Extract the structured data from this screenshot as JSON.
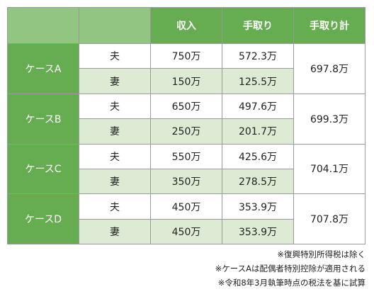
{
  "header": {
    "income": "収入",
    "take_home": "手取り",
    "take_home_total": "手取り計"
  },
  "cases": [
    {
      "label": "ケースA",
      "rows": [
        {
          "person": "夫",
          "income": "750万",
          "take_home": "572.3万"
        },
        {
          "person": "妻",
          "income": "150万",
          "take_home": "125.5万"
        }
      ],
      "total": "697.8万"
    },
    {
      "label": "ケースB",
      "rows": [
        {
          "person": "夫",
          "income": "650万",
          "take_home": "497.6万"
        },
        {
          "person": "妻",
          "income": "250万",
          "take_home": "201.7万"
        }
      ],
      "total": "699.3万"
    },
    {
      "label": "ケースC",
      "rows": [
        {
          "person": "夫",
          "income": "550万",
          "take_home": "425.6万"
        },
        {
          "person": "妻",
          "income": "350万",
          "take_home": "278.5万"
        }
      ],
      "total": "704.1万"
    },
    {
      "label": "ケースD",
      "rows": [
        {
          "person": "夫",
          "income": "450万",
          "take_home": "353.9万"
        },
        {
          "person": "妻",
          "income": "450万",
          "take_home": "353.9万"
        }
      ],
      "total": "707.8万"
    }
  ],
  "notes": [
    "※復興特別所得税は除く",
    "※ケースAは配偶者特別控除が適用される",
    "※令和8年3月執筆時点の税法を基に試算"
  ],
  "colors": {
    "header_green": "#66ad52",
    "corner_green": "#93c582",
    "row_shade": "#ddebd5"
  }
}
